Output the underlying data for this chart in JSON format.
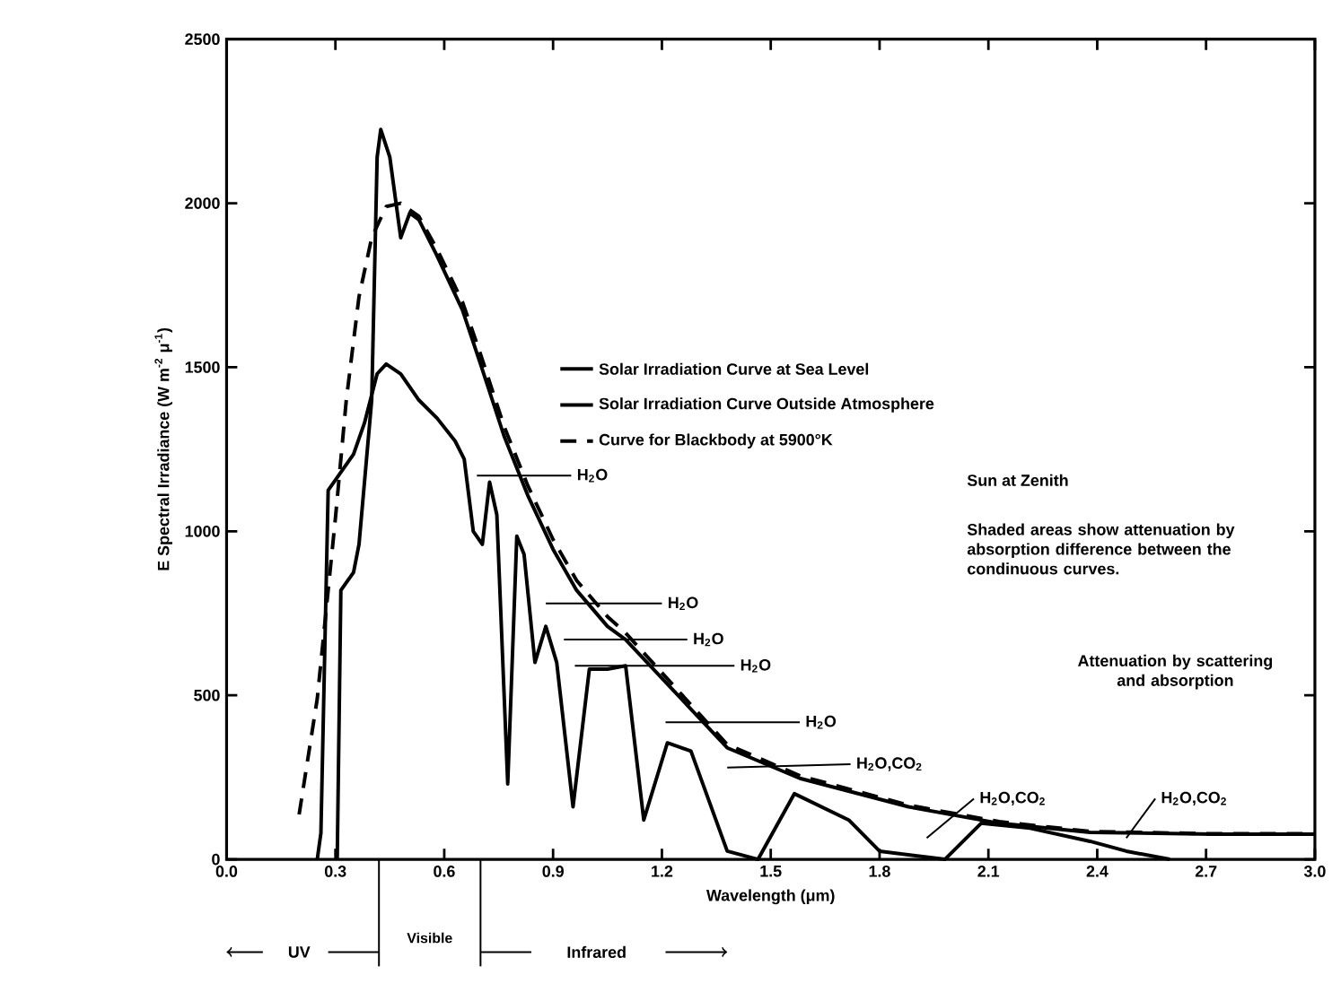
{
  "chart_data": {
    "type": "line",
    "xlabel": "Wavelength (μm)",
    "ylabel": "E   Spectral Irradiance (W m$^{-2}$ μ$^{-1}$)",
    "xlim": [
      0,
      3.0
    ],
    "ylim": [
      0,
      2500
    ],
    "xticks": [
      {
        "value": 0,
        "label": "0.0"
      },
      0.3,
      0.6,
      0.9,
      1.2,
      1.5,
      1.8,
      2.1,
      2.4,
      2.7,
      {
        "value": 3.0,
        "label": "3.0"
      }
    ],
    "yticks": [
      0,
      500,
      1000,
      1500,
      2000,
      2500
    ],
    "legend": "center",
    "series": [
      {
        "name": "Solar Irradiation Curve at Sea Level",
        "color": "#000000",
        "line_style": "solid",
        "x": [
          0.25,
          0.26,
          0.28,
          0.35,
          0.38,
          0.415,
          0.44,
          0.48,
          0.53,
          0.58,
          0.63,
          0.655,
          0.68,
          0.705,
          0.725,
          0.745,
          0.775,
          0.8,
          0.82,
          0.85,
          0.88,
          0.91,
          0.955,
          1.0,
          1.05,
          1.1,
          1.15,
          1.215,
          1.28,
          1.38,
          1.465,
          1.565,
          1.715,
          1.8,
          1.98,
          2.08,
          2.215,
          2.38,
          2.48,
          2.6
        ],
        "values": [
          0,
          80,
          1125,
          1235,
          1330,
          1480,
          1510,
          1480,
          1400,
          1345,
          1275,
          1220,
          1000,
          960,
          1150,
          1050,
          230,
          985,
          930,
          600,
          710,
          600,
          160,
          580,
          580,
          590,
          120,
          355,
          330,
          25,
          0,
          200,
          120,
          25,
          0,
          110,
          95,
          55,
          25,
          0
        ]
      },
      {
        "name": "Solar Irradiation Curve Outside Atmosphere",
        "color": "#000000",
        "line_style": "solid",
        "x": [
          0.305,
          0.315,
          0.35,
          0.365,
          0.4,
          0.415,
          0.425,
          0.45,
          0.48,
          0.505,
          0.53,
          0.58,
          0.65,
          0.7,
          0.765,
          0.83,
          0.9,
          0.965,
          1.05,
          1.1,
          1.38,
          1.58,
          1.88,
          2.13,
          2.38,
          2.72,
          3.0
        ],
        "values": [
          0,
          820,
          875,
          960,
          1400,
          2140,
          2225,
          2140,
          1895,
          1970,
          1950,
          1840,
          1675,
          1510,
          1290,
          1110,
          945,
          820,
          710,
          670,
          340,
          247,
          160,
          110,
          82,
          77,
          77
        ]
      },
      {
        "name": "Curve for Blackbody at 5900°K",
        "color": "#000000",
        "line_style": "dashed",
        "x": [
          0.2,
          0.25,
          0.3,
          0.33,
          0.365,
          0.4,
          0.44,
          0.48,
          0.53,
          0.58,
          0.65,
          0.7,
          0.765,
          0.83,
          0.9,
          0.965,
          1.05,
          1.1,
          1.38,
          1.58,
          1.88,
          2.13,
          2.38,
          2.72,
          3.0
        ],
        "values": [
          137,
          490,
          1040,
          1400,
          1715,
          1895,
          1990,
          2000,
          1960,
          1860,
          1700,
          1540,
          1320,
          1140,
          975,
          850,
          740,
          690,
          350,
          255,
          165,
          115,
          85,
          78,
          78
        ]
      }
    ],
    "annotations": [
      {
        "text": "H$_{2}$O",
        "x": 0.69,
        "y": 1170
      },
      "H$_{2}$O",
      "H$_{2}$O",
      "H$_{2}$O",
      "H$_{2}$O",
      "H$_{2}$O,CO$_{2}$",
      "H$_{2}$O,CO$_{2}$",
      {
        "text": "H$_{2}$O,CO$_{2}$",
        "x": 2.48,
        "y": 65
      },
      "Sun at Zenith",
      "Shaded areas show attenuation by absorption difference between the condinuous curves.",
      "Attenuation by scattering and absorption",
      "UV",
      "Visible",
      "Infrared"
    ]
  }
}
